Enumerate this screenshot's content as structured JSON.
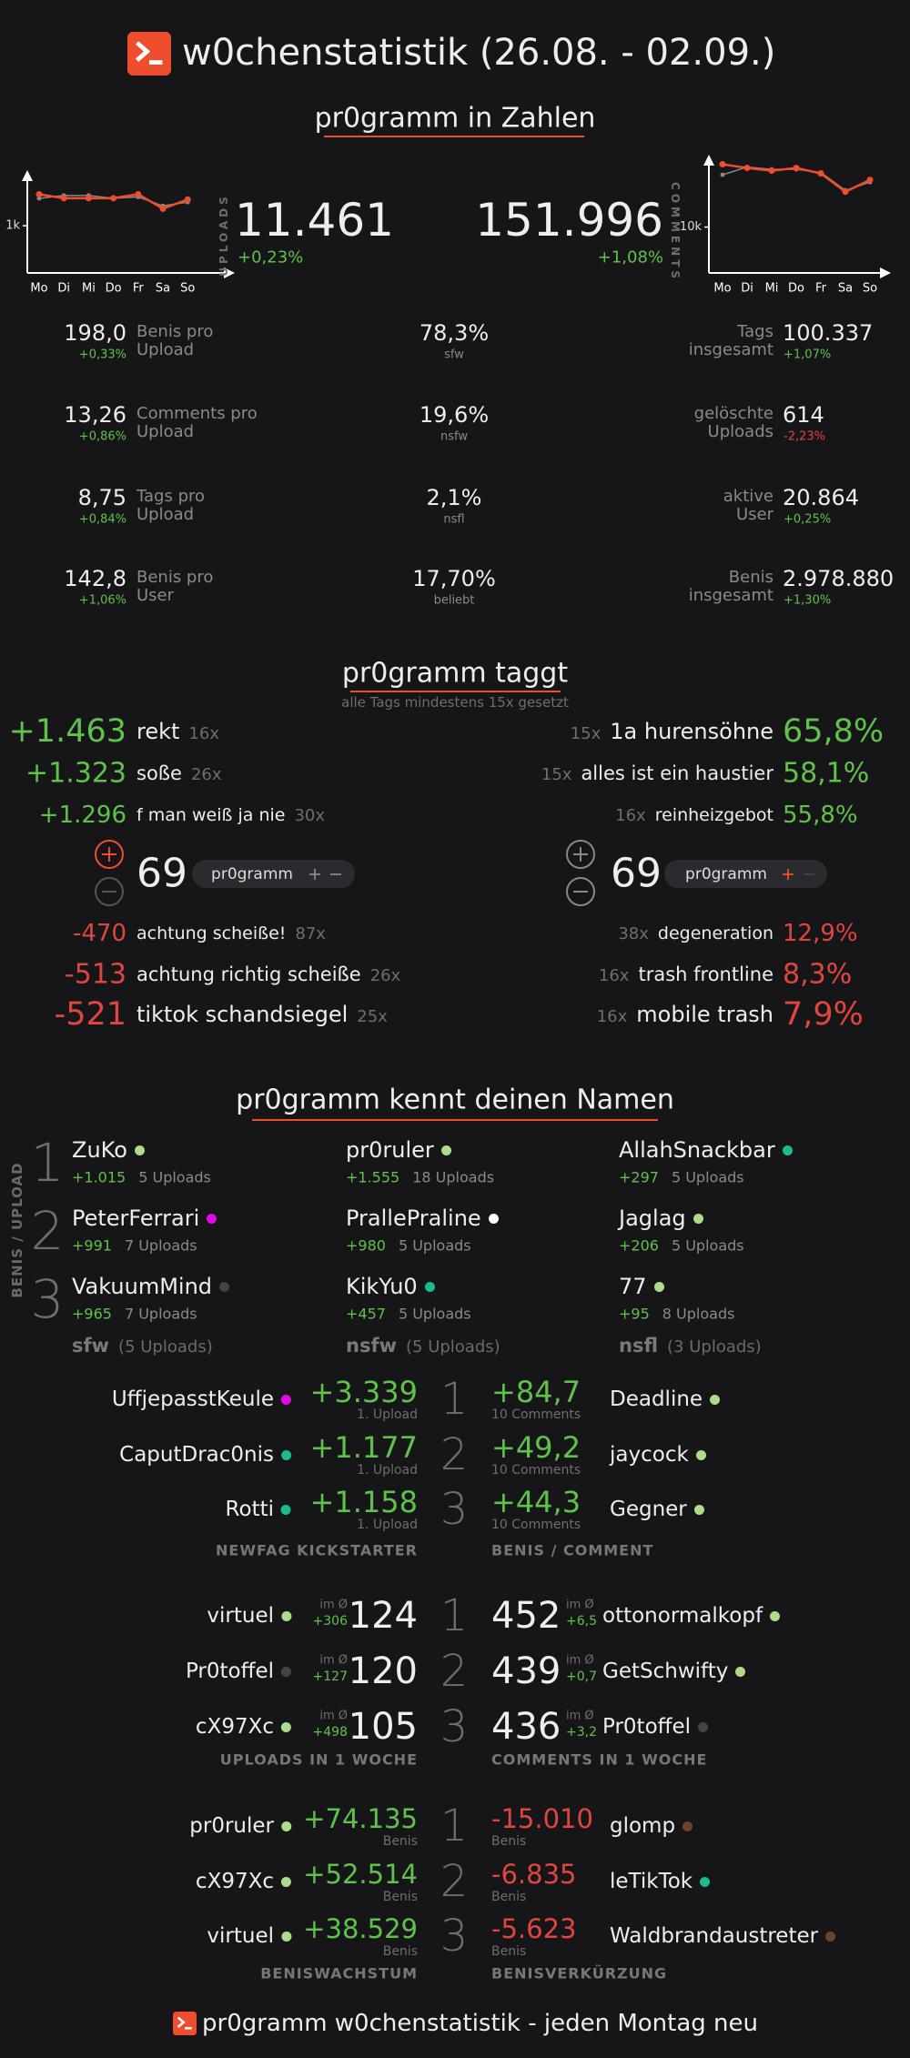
{
  "header": {
    "title": "w0chenstatistik (26.08. - 02.09.)"
  },
  "ranks": [
    "1",
    "2",
    "3"
  ],
  "numbers": {
    "title": "pr0gramm in Zahlen",
    "uploads": {
      "label": "UPLOADS",
      "value": "11.461",
      "change": "+0,23%"
    },
    "comments": {
      "label": "COMMENTS",
      "value": "151.996",
      "change": "+1,08%"
    },
    "left": [
      {
        "value": "198,0",
        "change": "+0,33%",
        "label": "Benis pro\nUpload"
      },
      {
        "value": "13,26",
        "change": "+0,86%",
        "label": "Comments pro\nUpload"
      },
      {
        "value": "8,75",
        "change": "+0,84%",
        "label": "Tags pro\nUpload"
      },
      {
        "value": "142,8",
        "change": "+1,06%",
        "label": "Benis pro\nUser"
      }
    ],
    "middle": [
      {
        "value": "78,3%",
        "label": "sfw"
      },
      {
        "value": "19,6%",
        "label": "nsfw"
      },
      {
        "value": "2,1%",
        "label": "nsfl"
      },
      {
        "value": "17,70%",
        "label": "beliebt"
      }
    ],
    "right": [
      {
        "label": "Tags\ninsgesamt",
        "value": "100.337",
        "change": "+1,07%"
      },
      {
        "label": "gelöschte\nUploads",
        "value": "614",
        "change": "-2,23%"
      },
      {
        "label": "aktive\nUser",
        "value": "20.864",
        "change": "+0,25%"
      },
      {
        "label": "Benis\ninsgesamt",
        "value": "2.978.880",
        "change": "+1,30%"
      }
    ]
  },
  "chart_data": [
    {
      "type": "line",
      "categories": [
        "Mo",
        "Di",
        "Mi",
        "Do",
        "Fr",
        "Sa",
        "So"
      ],
      "ylim": [
        0,
        2100
      ],
      "yticks": [
        {
          "value": 1000,
          "label": "1k"
        }
      ],
      "series": [
        {
          "color": "#888888",
          "values": [
            1580,
            1640,
            1640,
            1580,
            1610,
            1420,
            1500
          ]
        },
        {
          "color": "#ee4d2e",
          "values": [
            1667,
            1583,
            1583,
            1583,
            1667,
            1361,
            1556
          ]
        }
      ]
    },
    {
      "type": "line",
      "categories": [
        "Mo",
        "Di",
        "Mi",
        "Do",
        "Fr",
        "Sa",
        "So"
      ],
      "ylim": [
        0,
        25000
      ],
      "yticks": [
        {
          "value": 10000,
          "label": "10k"
        }
      ],
      "series": [
        {
          "color": "#888888",
          "values": [
            21400,
            23100,
            22600,
            22600,
            21900,
            18000,
            19800
          ]
        },
        {
          "color": "#ee4d2e",
          "values": [
            23700,
            22900,
            22300,
            22900,
            21700,
            17700,
            20300
          ]
        }
      ]
    }
  ],
  "tags": {
    "title": "pr0gramm taggt",
    "subtitle": "alle Tags mindestens 15x gesetzt",
    "left": {
      "top": [
        {
          "score": "+1.463",
          "tag": "rekt",
          "count": "16x"
        },
        {
          "score": "+1.323",
          "tag": "soße",
          "count": "26x"
        },
        {
          "score": "+1.296",
          "tag": "f man weiß ja nie",
          "count": "30x"
        }
      ],
      "count": "69",
      "pill": "pr0gramm",
      "bottom": [
        {
          "score": "-470",
          "tag": "achtung scheiße!",
          "count": "87x"
        },
        {
          "score": "-513",
          "tag": "achtung richtig scheiße",
          "count": "26x"
        },
        {
          "score": "-521",
          "tag": "tiktok schandsiegel",
          "count": "25x"
        }
      ]
    },
    "right": {
      "top": [
        {
          "count": "15x",
          "tag": "1a hurensöhne",
          "score": "65,8%"
        },
        {
          "count": "15x",
          "tag": "alles ist ein haustier",
          "score": "58,1%"
        },
        {
          "count": "16x",
          "tag": "reinheizgebot",
          "score": "55,8%"
        }
      ],
      "count": "69",
      "pill": "pr0gramm",
      "bottom": [
        {
          "count": "38x",
          "tag": "degeneration",
          "score": "12,9%"
        },
        {
          "count": "16x",
          "tag": "trash frontline",
          "score": "8,3%"
        },
        {
          "count": "16x",
          "tag": "mobile trash",
          "score": "7,9%"
        }
      ]
    }
  },
  "names": {
    "title": "pr0gramm kennt deinen Namen",
    "side_label": "BENIS / UPLOAD",
    "columns": [
      {
        "label": "sfw",
        "uploads": "(5 Uploads)",
        "users": [
          {
            "name": "ZuKo",
            "color": "#addc8d",
            "benis": "+1.015",
            "uploads": "5 Uploads"
          },
          {
            "name": "PeterFerrari",
            "color": "#e108e9",
            "benis": "+991",
            "uploads": "7 Uploads"
          },
          {
            "name": "VakuumMind",
            "color": "#444444",
            "benis": "+965",
            "uploads": "7 Uploads"
          }
        ]
      },
      {
        "label": "nsfw",
        "uploads": "(5 Uploads)",
        "users": [
          {
            "name": "pr0ruler",
            "color": "#addc8d",
            "benis": "+1.555",
            "uploads": "18 Uploads"
          },
          {
            "name": "PrallePraline",
            "color": "#ffffff",
            "benis": "+980",
            "uploads": "5 Uploads"
          },
          {
            "name": "KikYu0",
            "color": "#1cb992",
            "benis": "+457",
            "uploads": "5 Uploads"
          }
        ]
      },
      {
        "label": "nsfl",
        "uploads": "(3 Uploads)",
        "users": [
          {
            "name": "AllahSnackbar",
            "color": "#1cb992",
            "benis": "+297",
            "uploads": "5 Uploads"
          },
          {
            "name": "Jaglag",
            "color": "#addc8d",
            "benis": "+206",
            "uploads": "5 Uploads"
          },
          {
            "name": "77",
            "color": "#addc8d",
            "benis": "+95",
            "uploads": "8 Uploads"
          }
        ]
      }
    ]
  },
  "rankings": [
    {
      "left": {
        "label": "NEWFAG KICKSTARTER",
        "rows": [
          {
            "name": "UffjepasstKeule",
            "color": "#e108e9",
            "value": "+3.339",
            "sub": "1. Upload"
          },
          {
            "name": "CaputDrac0nis",
            "color": "#1cb992",
            "value": "+1.177",
            "sub": "1. Upload"
          },
          {
            "name": "Rotti",
            "color": "#1cb992",
            "value": "+1.158",
            "sub": "1. Upload"
          }
        ]
      },
      "right": {
        "label": "BENIS / COMMENT",
        "rows": [
          {
            "name": "Deadline",
            "color": "#addc8d",
            "value": "+84,7",
            "sub": "10 Comments"
          },
          {
            "name": "jaycock",
            "color": "#addc8d",
            "value": "+49,2",
            "sub": "10 Comments"
          },
          {
            "name": "Gegner",
            "color": "#addc8d",
            "value": "+44,3",
            "sub": "10 Comments"
          }
        ]
      }
    },
    {
      "left": {
        "label": "UPLOADS IN 1 WOCHE",
        "rows": [
          {
            "name": "virtuel",
            "color": "#addc8d",
            "value": "124",
            "note_label": "im Ø",
            "note": "+306"
          },
          {
            "name": "Pr0toffel",
            "color": "#444444",
            "value": "120",
            "note_label": "im Ø",
            "note": "+127"
          },
          {
            "name": "cX97Xc",
            "color": "#addc8d",
            "value": "105",
            "note_label": "im Ø",
            "note": "+498"
          }
        ]
      },
      "right": {
        "label": "COMMENTS IN 1 WOCHE",
        "rows": [
          {
            "name": "ottonormalkopf",
            "color": "#addc8d",
            "value": "452",
            "note_label": "im Ø",
            "note": "+6,5"
          },
          {
            "name": "GetSchwifty",
            "color": "#addc8d",
            "value": "439",
            "note_label": "im Ø",
            "note": "+0,7"
          },
          {
            "name": "Pr0toffel",
            "color": "#444444",
            "value": "436",
            "note_label": "im Ø",
            "note": "+3,2"
          }
        ]
      }
    },
    {
      "left": {
        "label": "BENISWACHSTUM",
        "rows": [
          {
            "name": "pr0ruler",
            "color": "#addc8d",
            "value": "+74.135",
            "sub": "Benis"
          },
          {
            "name": "cX97Xc",
            "color": "#addc8d",
            "value": "+52.514",
            "sub": "Benis"
          },
          {
            "name": "virtuel",
            "color": "#addc8d",
            "value": "+38.529",
            "sub": "Benis"
          }
        ]
      },
      "right": {
        "label": "BENISVERKÜRZUNG",
        "rows": [
          {
            "name": "glomp",
            "color": "#6c432b",
            "value": "-15.010",
            "sub": "Benis"
          },
          {
            "name": "leTikTok",
            "color": "#1cb992",
            "value": "-6.835",
            "sub": "Benis"
          },
          {
            "name": "Waldbrandaustreter",
            "color": "#6c432b",
            "value": "-5.623",
            "sub": "Benis"
          }
        ]
      }
    }
  ],
  "footer": {
    "text": "pr0gramm w0chenstatistik - jeden Montag neu"
  }
}
